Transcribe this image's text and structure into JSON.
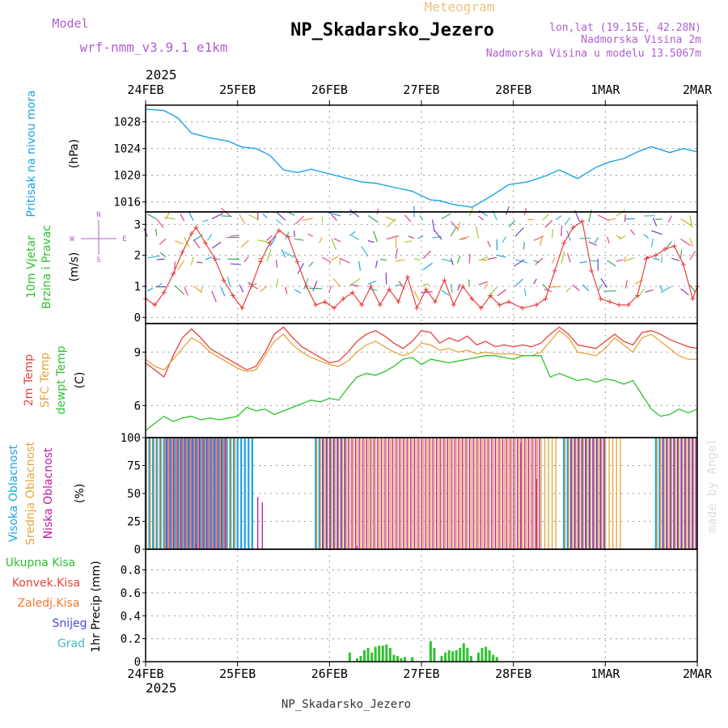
{
  "header": {
    "title": "NP_Skadarsko_Jezero",
    "subtitle": "Meteogram",
    "model_label": "Model",
    "model_name": "wrf-nmm_v3.9.1 e1km",
    "lonlat": "lon,lat (19.15E, 42.28N)",
    "elev": "Nadmorska Visina 2m",
    "elev_model": "Nadmorska Visina u modelu 13.5067m"
  },
  "footer": {
    "station": "NP_Skadarsko_Jezero",
    "credit": "made by Angel"
  },
  "colors": {
    "pressure": "#1ca3e8",
    "temp2m": "#e8413c",
    "sfc": "#e8a33c",
    "dewpt": "#2ec22e",
    "high_cloud": "#1ca3e8",
    "mid_cloud": "#e8a33c",
    "low_cloud": "#c0189c",
    "precip": "#2ec22e",
    "frame": "#000000",
    "grid": "#999999"
  },
  "chart_data": [
    {
      "id": "pressure",
      "type": "line",
      "ylabel_main": "Pritisak na nivou mora",
      "yunit": "(hPa)",
      "yticks": [
        1016,
        1020,
        1024,
        1028
      ],
      "ylim": [
        1014.5,
        1030.5
      ],
      "top_year": "2025",
      "top_dates": [
        "24FEB",
        "25FEB",
        "26FEB",
        "27FEB",
        "28FEB",
        "1MAR",
        "2MAR"
      ],
      "x": [
        0,
        0.2,
        0.35,
        0.5,
        0.7,
        0.9,
        1.05,
        1.2,
        1.35,
        1.5,
        1.65,
        1.8,
        2.0,
        2.2,
        2.35,
        2.5,
        2.7,
        2.9,
        3.1,
        3.2,
        3.35,
        3.55,
        3.75,
        3.95,
        4.15,
        4.35,
        4.5,
        4.7,
        4.9,
        5.05,
        5.2,
        5.35,
        5.5,
        5.7,
        5.85,
        6.0
      ],
      "values": [
        1029.9,
        1029.7,
        1028.6,
        1026.3,
        1025.6,
        1025.1,
        1024.2,
        1024.0,
        1023.0,
        1020.8,
        1020.4,
        1020.9,
        1020.2,
        1019.5,
        1019.0,
        1018.8,
        1018.2,
        1017.6,
        1016.3,
        1016.2,
        1015.6,
        1015.2,
        1016.8,
        1018.6,
        1019.0,
        1019.9,
        1020.8,
        1019.5,
        1021.2,
        1022.0,
        1022.5,
        1023.5,
        1024.3,
        1023.4,
        1024.0,
        1023.5
      ]
    },
    {
      "id": "wind",
      "type": "line",
      "ylabel_main": "10m Vjetar",
      "ylabel_sub": "Brzina i Pravac",
      "yunit": "(m/s)",
      "compass": [
        "N",
        "S",
        "W",
        "E"
      ],
      "yticks": [
        0,
        1,
        2,
        3
      ],
      "ylim": [
        -0.2,
        3.4
      ],
      "x": [
        0,
        0.1,
        0.2,
        0.3,
        0.4,
        0.5,
        0.55,
        0.65,
        0.75,
        0.85,
        0.95,
        1.05,
        1.15,
        1.25,
        1.35,
        1.45,
        1.55,
        1.65,
        1.75,
        1.85,
        1.95,
        2.05,
        2.15,
        2.25,
        2.35,
        2.45,
        2.55,
        2.65,
        2.75,
        2.85,
        2.95,
        3.05,
        3.15,
        3.25,
        3.35,
        3.45,
        3.55,
        3.65,
        3.75,
        3.85,
        3.95,
        4.1,
        4.25,
        4.35,
        4.45,
        4.55,
        4.65,
        4.75,
        4.85,
        4.95,
        5.05,
        5.15,
        5.25,
        5.35,
        5.45,
        5.55,
        5.65,
        5.75,
        5.85,
        5.95,
        6.0
      ],
      "values": [
        0.6,
        0.4,
        0.8,
        1.4,
        2.1,
        2.7,
        2.9,
        2.4,
        1.9,
        1.2,
        0.7,
        0.3,
        1.0,
        1.8,
        2.4,
        2.8,
        2.6,
        1.8,
        1.0,
        0.4,
        0.5,
        0.3,
        0.6,
        0.8,
        0.4,
        1.0,
        0.4,
        0.9,
        0.5,
        1.3,
        0.3,
        0.9,
        0.5,
        1.2,
        0.4,
        1.0,
        0.6,
        0.3,
        0.7,
        0.4,
        0.5,
        0.3,
        0.4,
        0.6,
        1.5,
        2.4,
        2.9,
        3.1,
        1.5,
        0.6,
        0.5,
        0.4,
        0.4,
        0.7,
        1.9,
        2.0,
        2.2,
        2.3,
        1.7,
        0.6,
        1.0
      ]
    },
    {
      "id": "temp",
      "type": "line",
      "ylabel_lines": [
        "2m Temp",
        "SFC Temp",
        "dewpt Temp"
      ],
      "yunit": "(C)",
      "yticks": [
        6,
        9
      ],
      "ylim": [
        4.2,
        10.6
      ],
      "series": [
        {
          "name": "2m Temp",
          "x": [
            0,
            0.1,
            0.2,
            0.3,
            0.4,
            0.5,
            0.6,
            0.7,
            0.8,
            0.9,
            1.0,
            1.1,
            1.2,
            1.3,
            1.4,
            1.5,
            1.6,
            1.7,
            1.8,
            1.9,
            2.0,
            2.1,
            2.2,
            2.3,
            2.4,
            2.5,
            2.6,
            2.7,
            2.8,
            2.9,
            3.0,
            3.1,
            3.2,
            3.3,
            3.4,
            3.5,
            3.6,
            3.7,
            3.8,
            3.9,
            4.0,
            4.1,
            4.2,
            4.3,
            4.4,
            4.5,
            4.6,
            4.7,
            4.8,
            4.9,
            5.0,
            5.1,
            5.2,
            5.3,
            5.4,
            5.5,
            5.6,
            5.7,
            5.8,
            5.9,
            6.0
          ],
          "values": [
            8.4,
            8.0,
            7.6,
            8.8,
            9.8,
            10.3,
            9.8,
            9.2,
            8.9,
            8.6,
            8.3,
            8.0,
            8.2,
            9.0,
            10.0,
            10.4,
            9.8,
            9.3,
            9.0,
            8.7,
            8.4,
            8.5,
            9.0,
            9.6,
            10.0,
            10.2,
            9.9,
            9.5,
            9.2,
            9.6,
            10.2,
            10.1,
            9.5,
            9.8,
            9.6,
            9.9,
            9.4,
            9.6,
            9.3,
            9.4,
            9.3,
            9.4,
            9.3,
            9.5,
            10.0,
            10.4,
            10.0,
            9.4,
            9.3,
            9.2,
            9.6,
            10.0,
            9.6,
            9.4,
            10.1,
            10.2,
            10.0,
            9.7,
            9.5,
            9.3,
            9.2
          ]
        },
        {
          "name": "SFC Temp",
          "x": [
            0,
            0.1,
            0.2,
            0.3,
            0.4,
            0.5,
            0.6,
            0.7,
            0.8,
            0.9,
            1.0,
            1.1,
            1.2,
            1.3,
            1.4,
            1.5,
            1.6,
            1.7,
            1.8,
            1.9,
            2.0,
            2.1,
            2.2,
            2.3,
            2.4,
            2.5,
            2.6,
            2.7,
            2.8,
            2.9,
            3.0,
            3.1,
            3.2,
            3.3,
            3.4,
            3.5,
            3.6,
            3.7,
            3.8,
            3.9,
            4.0,
            4.1,
            4.2,
            4.3,
            4.4,
            4.5,
            4.6,
            4.7,
            4.8,
            4.9,
            5.0,
            5.1,
            5.2,
            5.3,
            5.4,
            5.5,
            5.6,
            5.7,
            5.8,
            5.9,
            6.0
          ],
          "values": [
            8.6,
            8.2,
            8.0,
            8.6,
            9.2,
            9.8,
            9.5,
            9.0,
            8.7,
            8.4,
            8.1,
            7.9,
            8.0,
            8.8,
            9.6,
            10.0,
            9.4,
            9.0,
            8.7,
            8.5,
            8.3,
            8.2,
            8.5,
            9.0,
            9.4,
            9.6,
            9.3,
            9.0,
            8.8,
            9.0,
            9.5,
            9.4,
            9.1,
            9.2,
            9.0,
            9.1,
            8.9,
            9.0,
            8.9,
            8.9,
            8.9,
            8.8,
            8.8,
            9.0,
            9.6,
            10.2,
            9.8,
            9.0,
            8.9,
            8.8,
            9.2,
            9.8,
            9.4,
            9.0,
            9.8,
            10.0,
            9.6,
            9.2,
            8.8,
            8.6,
            8.6
          ]
        },
        {
          "name": "dewpt Temp",
          "x": [
            0,
            0.1,
            0.2,
            0.3,
            0.4,
            0.5,
            0.6,
            0.7,
            0.8,
            0.9,
            1.0,
            1.1,
            1.2,
            1.3,
            1.4,
            1.5,
            1.6,
            1.7,
            1.8,
            1.9,
            2.0,
            2.1,
            2.2,
            2.3,
            2.4,
            2.5,
            2.6,
            2.7,
            2.8,
            2.9,
            3.0,
            3.1,
            3.2,
            3.3,
            3.4,
            3.5,
            3.6,
            3.7,
            3.8,
            3.9,
            4.0,
            4.1,
            4.2,
            4.3,
            4.4,
            4.5,
            4.6,
            4.7,
            4.8,
            4.9,
            5.0,
            5.1,
            5.2,
            5.3,
            5.4,
            5.5,
            5.6,
            5.7,
            5.8,
            5.9,
            6.0
          ],
          "values": [
            4.6,
            5.0,
            5.4,
            5.1,
            5.3,
            5.4,
            5.2,
            5.3,
            5.2,
            5.3,
            5.4,
            5.9,
            5.7,
            5.8,
            5.5,
            5.7,
            5.9,
            6.1,
            6.3,
            6.2,
            6.4,
            6.3,
            7.0,
            7.6,
            7.8,
            7.7,
            7.9,
            8.2,
            8.6,
            8.7,
            8.3,
            8.6,
            8.5,
            8.4,
            8.5,
            8.6,
            8.7,
            8.8,
            8.8,
            8.7,
            8.6,
            8.8,
            8.8,
            8.8,
            7.6,
            7.8,
            7.6,
            7.4,
            7.5,
            7.3,
            7.5,
            7.4,
            7.2,
            7.4,
            6.6,
            5.8,
            5.4,
            5.5,
            5.8,
            5.6,
            5.8
          ]
        }
      ]
    },
    {
      "id": "cloud",
      "type": "bar",
      "ylabel_lines": [
        "Visoka Oblacnost",
        "Srednja Oblacnost",
        "Niska Oblacnost"
      ],
      "yunit": "(%)",
      "yticks": [
        0,
        25,
        50,
        75,
        100
      ],
      "ylim": [
        0,
        100
      ],
      "series": [
        {
          "name": "Visoka Oblacnost",
          "segments": [
            [
              0.0,
              1.2,
              100
            ],
            [
              1.85,
              2.2,
              100
            ],
            [
              4.55,
              5.0,
              100
            ],
            [
              5.55,
              6.0,
              100
            ]
          ]
        },
        {
          "name": "Srednja Oblacnost",
          "segments": [
            [
              0.0,
              1.0,
              100
            ],
            [
              1.85,
              4.5,
              100
            ],
            [
              4.55,
              5.2,
              100
            ],
            [
              5.55,
              6.0,
              100
            ]
          ]
        },
        {
          "name": "Niska Oblacnost",
          "segments": [
            [
              0.2,
              0.9,
              100
            ],
            [
              1.9,
              4.3,
              100
            ],
            [
              4.6,
              5.0,
              100
            ],
            [
              5.6,
              6.0,
              100
            ]
          ]
        }
      ],
      "extra_bars": [
        [
          1.22,
          47
        ],
        [
          1.27,
          42
        ],
        [
          4.08,
          95
        ],
        [
          4.25,
          63
        ],
        [
          0.55,
          5
        ],
        [
          2.3,
          3
        ]
      ]
    },
    {
      "id": "precip",
      "type": "bar",
      "ylabel_lines": [
        "Ukupna Kisa",
        "Konvek.Kisa",
        "Zaledj.Kisa",
        "Snijeg",
        "Grad"
      ],
      "yunit": "1hr Precip (mm)",
      "yticks": [
        0,
        0.2,
        0.4,
        0.6,
        0.8
      ],
      "ylim": [
        0,
        0.98
      ],
      "bottom_year": "2025",
      "bottom_dates": [
        "24FEB",
        "25FEB",
        "26FEB",
        "27FEB",
        "28FEB",
        "1MAR",
        "2MAR"
      ],
      "x": [
        2.22,
        2.3,
        2.34,
        2.38,
        2.42,
        2.46,
        2.5,
        2.54,
        2.58,
        2.62,
        2.66,
        2.7,
        2.74,
        2.78,
        2.82,
        2.9,
        3.1,
        3.14,
        3.22,
        3.26,
        3.3,
        3.34,
        3.38,
        3.42,
        3.46,
        3.5,
        3.54,
        3.62,
        3.66,
        3.7,
        3.74,
        3.78,
        3.82
      ],
      "values": [
        0.08,
        0.03,
        0.05,
        0.1,
        0.12,
        0.08,
        0.13,
        0.14,
        0.14,
        0.15,
        0.12,
        0.06,
        0.05,
        0.03,
        0.04,
        0.04,
        0.18,
        0.12,
        0.05,
        0.08,
        0.1,
        0.09,
        0.1,
        0.12,
        0.16,
        0.12,
        0.05,
        0.08,
        0.12,
        0.13,
        0.1,
        0.06,
        0.04
      ]
    }
  ]
}
